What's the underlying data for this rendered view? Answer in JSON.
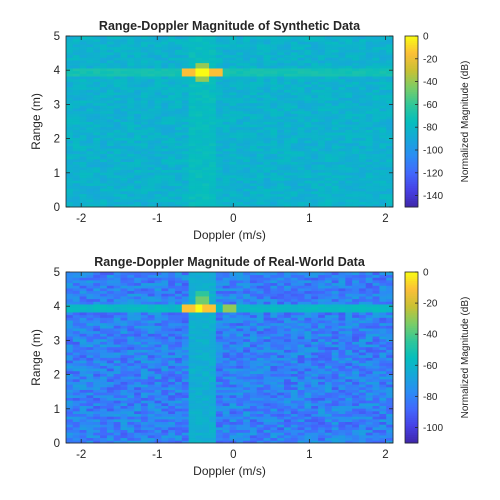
{
  "chart_data": [
    {
      "type": "heatmap",
      "title": "Range-Doppler Magnitude of Synthetic Data",
      "xlabel": "Doppler (m/s)",
      "ylabel": "Range (m)",
      "xlim": [
        -2.2,
        2.1
      ],
      "ylim": [
        0,
        5
      ],
      "xticks": [
        -2,
        -1,
        0,
        1,
        2
      ],
      "xtick_labels": [
        "-2",
        "-1",
        "0",
        "1",
        "2"
      ],
      "yticks": [
        0,
        1,
        2,
        3,
        4,
        5
      ],
      "ytick_labels": [
        "0",
        "1",
        "2",
        "3",
        "4",
        "5"
      ],
      "colorbar": {
        "label": "Normalized Magnitude (dB)",
        "clim": [
          -150,
          0
        ],
        "ticks": [
          0,
          -20,
          -40,
          -60,
          -80,
          -100,
          -120,
          -140
        ],
        "tick_labels": [
          "0",
          "-20",
          "-40",
          "-60",
          "-80",
          "-100",
          "-120",
          "-140"
        ],
        "colormap": "parula"
      },
      "grid": false,
      "background_level_db": -83,
      "background_spread_db": 7,
      "ridge_range_m": 3.95,
      "ridge_level_db": -70,
      "ridge_doppler_m_s": -0.42,
      "ridge_doppler_level_db": -76,
      "peaks": [
        {
          "doppler_m_s": -0.42,
          "range_m": 3.95,
          "value_db": 0
        },
        {
          "doppler_m_s": -0.62,
          "range_m": 3.95,
          "value_db": -15
        },
        {
          "doppler_m_s": -0.22,
          "range_m": 3.95,
          "value_db": -15
        },
        {
          "doppler_m_s": -0.42,
          "range_m": 3.8,
          "value_db": -40
        },
        {
          "doppler_m_s": -0.42,
          "range_m": 4.1,
          "value_db": -40
        }
      ]
    },
    {
      "type": "heatmap",
      "title": "Range-Doppler Magnitude of Real-World Data",
      "xlabel": "Doppler (m/s)",
      "ylabel": "Range (m)",
      "xlim": [
        -2.2,
        2.1
      ],
      "ylim": [
        0,
        5
      ],
      "xticks": [
        -2,
        -1,
        0,
        1,
        2
      ],
      "xtick_labels": [
        "-2",
        "-1",
        "0",
        "1",
        "2"
      ],
      "yticks": [
        0,
        1,
        2,
        3,
        4,
        5
      ],
      "ytick_labels": [
        "0",
        "1",
        "2",
        "3",
        "4",
        "5"
      ],
      "colorbar": {
        "label": "Normalized Magnitude (dB)",
        "clim": [
          -110,
          0
        ],
        "ticks": [
          0,
          -20,
          -40,
          -60,
          -80,
          -100
        ],
        "tick_labels": [
          "0",
          "-20",
          "-40",
          "-60",
          "-80",
          "-100"
        ],
        "colormap": "parula"
      },
      "grid": false,
      "background_level_db": -80,
      "background_spread_db": 12,
      "ridge_range_m": 3.95,
      "ridge_level_db": -58,
      "ridge_doppler_m_s": -0.42,
      "ridge_doppler_level_db": -62,
      "peaks": [
        {
          "doppler_m_s": -0.45,
          "range_m": 3.95,
          "value_db": 0
        },
        {
          "doppler_m_s": -0.6,
          "range_m": 3.95,
          "value_db": -10
        },
        {
          "doppler_m_s": -0.3,
          "range_m": 3.95,
          "value_db": -10
        },
        {
          "doppler_m_s": -0.05,
          "range_m": 3.95,
          "value_db": -30
        },
        {
          "doppler_m_s": -0.4,
          "range_m": 4.2,
          "value_db": -35
        },
        {
          "doppler_m_s": -0.4,
          "range_m": 4.35,
          "value_db": -45
        }
      ]
    }
  ]
}
